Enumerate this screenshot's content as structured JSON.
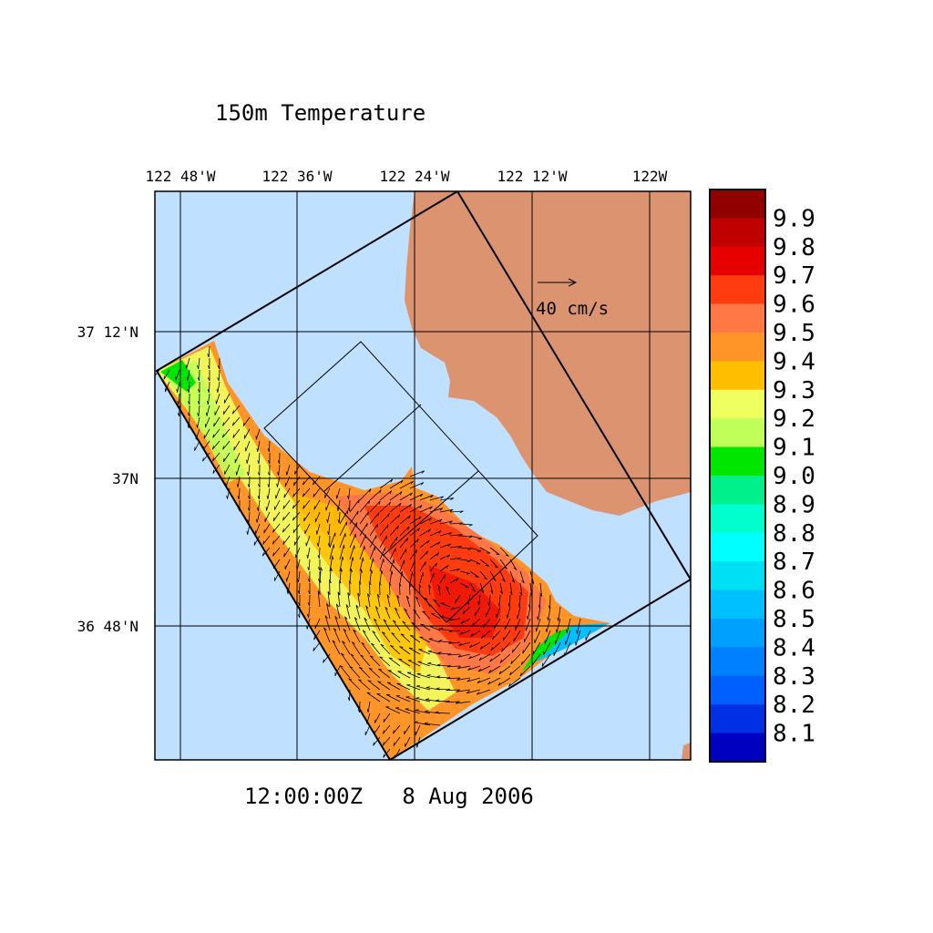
{
  "chart_data": {
    "type": "heatmap",
    "title": "150m Temperature",
    "time_label": "12:00:00Z   8 Aug 2006",
    "x_ticks": [
      "122 48'W",
      "122 36'W",
      "122 24'W",
      "122 12'W",
      "122W"
    ],
    "x_tick_values": [
      -122.8,
      -122.6,
      -122.4,
      -122.2,
      -122.0
    ],
    "y_ticks": [
      "37 12'N",
      "37N",
      "36 48'N"
    ],
    "y_tick_values": [
      37.2,
      37.0,
      36.8
    ],
    "xlim": [
      -122.842,
      -121.93
    ],
    "ylim": [
      36.71,
      37.3
    ],
    "reference_vector": {
      "label": "40 cm/s",
      "value": 40,
      "units": "cm/s"
    },
    "colorbar": {
      "range": [
        8.0,
        10.0
      ],
      "step": 0.1,
      "labels": [
        "9.9",
        "9.8",
        "9.7",
        "9.6",
        "9.5",
        "9.4",
        "9.3",
        "9.2",
        "9.1",
        "9.0",
        "8.9",
        "8.8",
        "8.7",
        "8.6",
        "8.5",
        "8.4",
        "8.3",
        "8.2",
        "8.1"
      ],
      "colors": [
        "#900000",
        "#c00000",
        "#e60000",
        "#ff3c10",
        "#ff7845",
        "#ff9428",
        "#ffbe00",
        "#f0ff60",
        "#c0ff5a",
        "#00e600",
        "#00f08c",
        "#00ffcc",
        "#00ffff",
        "#00e0f5",
        "#00c0ff",
        "#00a0ff",
        "#0080ff",
        "#0060ff",
        "#0030e6",
        "#0000c0"
      ]
    },
    "field_summary": {
      "warm_core_max": 9.7,
      "coastal_min": 8.5,
      "offshore_typical": 9.3
    },
    "colors": {
      "ocean": "#c0e0ff",
      "land": "#dc9470"
    }
  }
}
